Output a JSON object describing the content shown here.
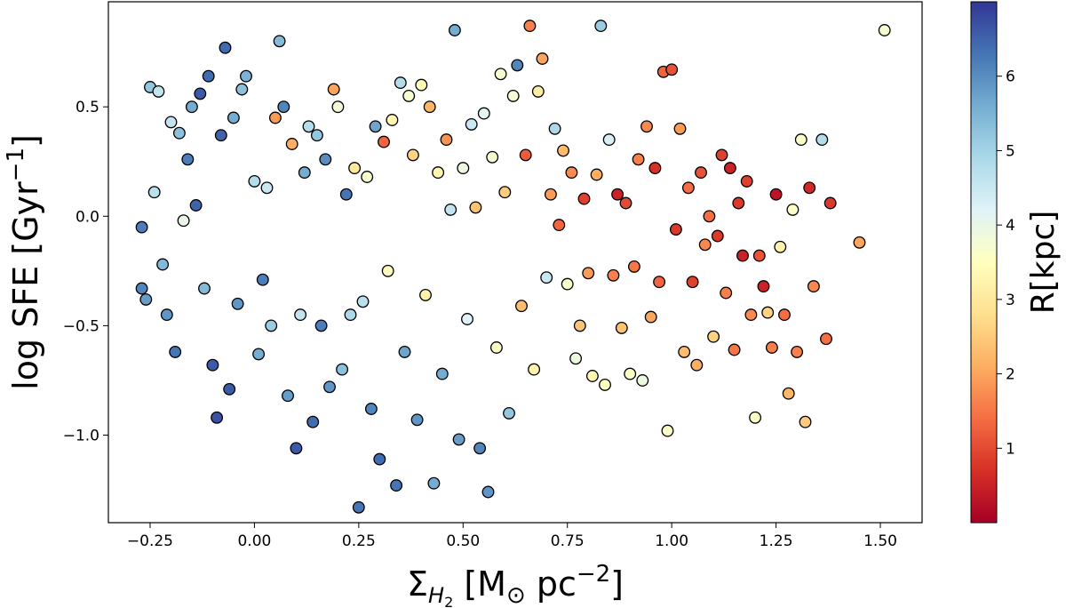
{
  "chart_data": {
    "type": "scatter",
    "title": "",
    "xlabel": {
      "main": "Σ",
      "sub": "H",
      "subsub": "2",
      "rest": " [M",
      "sun_sub": "⊙",
      "rest2": " pc",
      "sup": "−2",
      "close": "]"
    },
    "ylabel": {
      "main": "log SFE [Gyr",
      "sup": "−1",
      "close": "]"
    },
    "xlim": [
      -0.35,
      1.6
    ],
    "ylim": [
      -1.4,
      0.98
    ],
    "xticks": [
      -0.25,
      0.0,
      0.25,
      0.5,
      0.75,
      1.0,
      1.25,
      1.5
    ],
    "xtick_labels": [
      "−0.25",
      "0.00",
      "0.25",
      "0.50",
      "0.75",
      "1.00",
      "1.25",
      "1.50"
    ],
    "yticks": [
      -1.0,
      -0.5,
      0.0,
      0.5
    ],
    "ytick_labels": [
      "−1.0",
      "−0.5",
      "0.0",
      "0.5"
    ],
    "colorbar": {
      "label": "R[kpc]",
      "range": [
        0.0,
        7.0
      ],
      "colormap": "RdYlBu",
      "ticks": [
        1,
        2,
        3,
        4,
        5,
        6
      ],
      "tick_labels": [
        "1",
        "2",
        "3",
        "4",
        "5",
        "6"
      ],
      "stops": [
        "#a50026",
        "#d73027",
        "#f46d43",
        "#fdae61",
        "#fee090",
        "#ffffbf",
        "#e0f3f8",
        "#abd9e9",
        "#74add1",
        "#4575b4",
        "#313695"
      ]
    },
    "marker_edge_color": "#000000",
    "points": [
      [
        -0.27,
        -0.05,
        6.2
      ],
      [
        -0.27,
        -0.33,
        6.1
      ],
      [
        -0.26,
        -0.38,
        5.8
      ],
      [
        -0.25,
        0.59,
        5.2
      ],
      [
        -0.24,
        0.11,
        4.7
      ],
      [
        -0.23,
        0.57,
        4.6
      ],
      [
        -0.22,
        -0.22,
        5.4
      ],
      [
        -0.21,
        -0.45,
        5.9
      ],
      [
        -0.2,
        0.43,
        4.6
      ],
      [
        -0.19,
        -0.62,
        6.3
      ],
      [
        -0.18,
        0.38,
        5.3
      ],
      [
        -0.17,
        -0.02,
        4.0
      ],
      [
        -0.16,
        0.26,
        6.2
      ],
      [
        -0.15,
        0.5,
        5.6
      ],
      [
        -0.14,
        0.05,
        6.5
      ],
      [
        -0.13,
        0.56,
        6.6
      ],
      [
        -0.12,
        -0.33,
        5.4
      ],
      [
        -0.11,
        0.64,
        6.4
      ],
      [
        -0.1,
        -0.68,
        6.6
      ],
      [
        -0.09,
        -0.92,
        6.7
      ],
      [
        -0.08,
        0.37,
        6.5
      ],
      [
        -0.07,
        0.77,
        6.4
      ],
      [
        -0.06,
        -0.79,
        6.6
      ],
      [
        -0.05,
        0.45,
        5.6
      ],
      [
        -0.04,
        -0.4,
        5.9
      ],
      [
        -0.03,
        0.58,
        5.3
      ],
      [
        -0.02,
        0.64,
        5.5
      ],
      [
        0.0,
        0.16,
        4.8
      ],
      [
        0.01,
        -0.63,
        5.6
      ],
      [
        0.02,
        -0.29,
        6.2
      ],
      [
        0.03,
        0.13,
        4.5
      ],
      [
        0.04,
        -0.5,
        5.1
      ],
      [
        0.05,
        0.45,
        1.9
      ],
      [
        0.06,
        0.8,
        5.4
      ],
      [
        0.07,
        0.5,
        6.1
      ],
      [
        0.08,
        -0.82,
        5.8
      ],
      [
        0.09,
        0.33,
        2.1
      ],
      [
        0.1,
        -1.06,
        6.6
      ],
      [
        0.11,
        -0.45,
        4.6
      ],
      [
        0.12,
        0.2,
        5.6
      ],
      [
        0.13,
        0.41,
        4.8
      ],
      [
        0.14,
        -0.94,
        6.4
      ],
      [
        0.15,
        0.37,
        5.2
      ],
      [
        0.16,
        -0.5,
        6.2
      ],
      [
        0.17,
        0.26,
        6.0
      ],
      [
        0.18,
        -0.78,
        5.9
      ],
      [
        0.19,
        0.58,
        2.0
      ],
      [
        0.2,
        0.5,
        3.8
      ],
      [
        0.21,
        -0.7,
        5.3
      ],
      [
        0.22,
        0.1,
        6.3
      ],
      [
        0.23,
        -0.45,
        4.9
      ],
      [
        0.24,
        0.22,
        3.0
      ],
      [
        0.25,
        -1.33,
        6.3
      ],
      [
        0.26,
        -0.39,
        4.7
      ],
      [
        0.27,
        0.18,
        3.7
      ],
      [
        0.28,
        -0.88,
        6.1
      ],
      [
        0.29,
        0.41,
        5.7
      ],
      [
        0.3,
        -1.11,
        6.4
      ],
      [
        0.31,
        0.34,
        1.3
      ],
      [
        0.32,
        -0.25,
        3.4
      ],
      [
        0.33,
        0.44,
        3.3
      ],
      [
        0.34,
        -1.23,
        6.3
      ],
      [
        0.35,
        0.61,
        4.8
      ],
      [
        0.36,
        -0.62,
        5.7
      ],
      [
        0.37,
        0.55,
        3.7
      ],
      [
        0.38,
        0.28,
        2.6
      ],
      [
        0.39,
        -0.93,
        5.9
      ],
      [
        0.4,
        0.6,
        3.4
      ],
      [
        0.41,
        -0.36,
        3.2
      ],
      [
        0.42,
        0.5,
        2.2
      ],
      [
        0.43,
        -1.22,
        5.6
      ],
      [
        0.44,
        0.2,
        3.3
      ],
      [
        0.45,
        -0.72,
        5.6
      ],
      [
        0.46,
        0.35,
        1.8
      ],
      [
        0.47,
        0.03,
        4.6
      ],
      [
        0.48,
        0.85,
        5.6
      ],
      [
        0.49,
        -1.02,
        5.8
      ],
      [
        0.5,
        0.22,
        3.9
      ],
      [
        0.51,
        -0.47,
        4.2
      ],
      [
        0.52,
        0.42,
        4.5
      ],
      [
        0.53,
        0.04,
        2.4
      ],
      [
        0.54,
        -1.06,
        6.1
      ],
      [
        0.55,
        0.47,
        4.1
      ],
      [
        0.56,
        -1.26,
        5.9
      ],
      [
        0.57,
        0.27,
        3.7
      ],
      [
        0.58,
        -0.6,
        3.6
      ],
      [
        0.59,
        0.65,
        3.7
      ],
      [
        0.6,
        0.11,
        2.5
      ],
      [
        0.61,
        -0.9,
        5.2
      ],
      [
        0.62,
        0.55,
        3.8
      ],
      [
        0.63,
        0.69,
        6.1
      ],
      [
        0.64,
        -0.41,
        2.3
      ],
      [
        0.65,
        0.28,
        1.2
      ],
      [
        0.66,
        0.87,
        1.6
      ],
      [
        0.67,
        -0.7,
        3.2
      ],
      [
        0.68,
        0.57,
        3.1
      ],
      [
        0.69,
        0.72,
        2.0
      ],
      [
        0.7,
        -0.28,
        4.5
      ],
      [
        0.71,
        0.1,
        1.9
      ],
      [
        0.72,
        0.4,
        4.9
      ],
      [
        0.73,
        -0.04,
        1.3
      ],
      [
        0.74,
        0.3,
        2.3
      ],
      [
        0.75,
        -0.31,
        3.6
      ],
      [
        0.76,
        0.2,
        1.7
      ],
      [
        0.77,
        -0.65,
        3.9
      ],
      [
        0.78,
        -0.5,
        2.4
      ],
      [
        0.79,
        0.08,
        0.9
      ],
      [
        0.8,
        -0.26,
        1.9
      ],
      [
        0.81,
        -0.73,
        3.3
      ],
      [
        0.82,
        0.19,
        2.1
      ],
      [
        0.83,
        0.87,
        5.1
      ],
      [
        0.84,
        -0.77,
        3.5
      ],
      [
        0.85,
        0.35,
        4.3
      ],
      [
        0.86,
        -0.27,
        1.6
      ],
      [
        0.87,
        0.1,
        0.5
      ],
      [
        0.88,
        -0.51,
        2.4
      ],
      [
        0.89,
        0.06,
        1.0
      ],
      [
        0.9,
        -0.72,
        3.6
      ],
      [
        0.91,
        -0.23,
        1.5
      ],
      [
        0.92,
        0.26,
        1.6
      ],
      [
        0.93,
        -0.75,
        3.9
      ],
      [
        0.94,
        0.41,
        1.7
      ],
      [
        0.95,
        -0.46,
        2.0
      ],
      [
        0.96,
        0.22,
        0.7
      ],
      [
        0.97,
        -0.3,
        1.3
      ],
      [
        0.98,
        0.66,
        1.3
      ],
      [
        0.99,
        -0.98,
        3.6
      ],
      [
        1.0,
        0.67,
        1.1
      ],
      [
        1.01,
        -0.06,
        0.8
      ],
      [
        1.02,
        0.4,
        1.9
      ],
      [
        1.03,
        -0.62,
        2.3
      ],
      [
        1.04,
        0.13,
        1.4
      ],
      [
        1.05,
        -0.3,
        0.9
      ],
      [
        1.06,
        -0.68,
        2.1
      ],
      [
        1.07,
        0.2,
        1.1
      ],
      [
        1.08,
        -0.13,
        1.7
      ],
      [
        1.09,
        0.0,
        1.4
      ],
      [
        1.1,
        -0.55,
        2.6
      ],
      [
        1.11,
        -0.09,
        0.8
      ],
      [
        1.12,
        0.28,
        0.9
      ],
      [
        1.13,
        -0.35,
        1.6
      ],
      [
        1.14,
        0.22,
        0.5
      ],
      [
        1.15,
        -0.61,
        1.5
      ],
      [
        1.16,
        0.06,
        0.8
      ],
      [
        1.17,
        -0.18,
        0.5
      ],
      [
        1.18,
        0.16,
        0.9
      ],
      [
        1.19,
        -0.45,
        1.7
      ],
      [
        1.2,
        -0.92,
        3.6
      ],
      [
        1.21,
        -0.18,
        1.1
      ],
      [
        1.22,
        -0.32,
        0.5
      ],
      [
        1.23,
        -0.44,
        2.6
      ],
      [
        1.24,
        -0.6,
        1.6
      ],
      [
        1.25,
        0.1,
        0.3
      ],
      [
        1.26,
        -0.14,
        3.2
      ],
      [
        1.27,
        -0.45,
        1.4
      ],
      [
        1.28,
        -0.81,
        2.2
      ],
      [
        1.29,
        0.03,
        3.6
      ],
      [
        1.3,
        -0.62,
        1.6
      ],
      [
        1.31,
        0.35,
        3.6
      ],
      [
        1.32,
        -0.94,
        2.5
      ],
      [
        1.33,
        0.13,
        0.6
      ],
      [
        1.34,
        -0.32,
        1.7
      ],
      [
        1.36,
        0.35,
        4.8
      ],
      [
        1.37,
        -0.56,
        1.4
      ],
      [
        1.38,
        0.06,
        0.8
      ],
      [
        1.45,
        -0.12,
        2.0
      ],
      [
        1.51,
        0.85,
        3.7
      ]
    ]
  }
}
